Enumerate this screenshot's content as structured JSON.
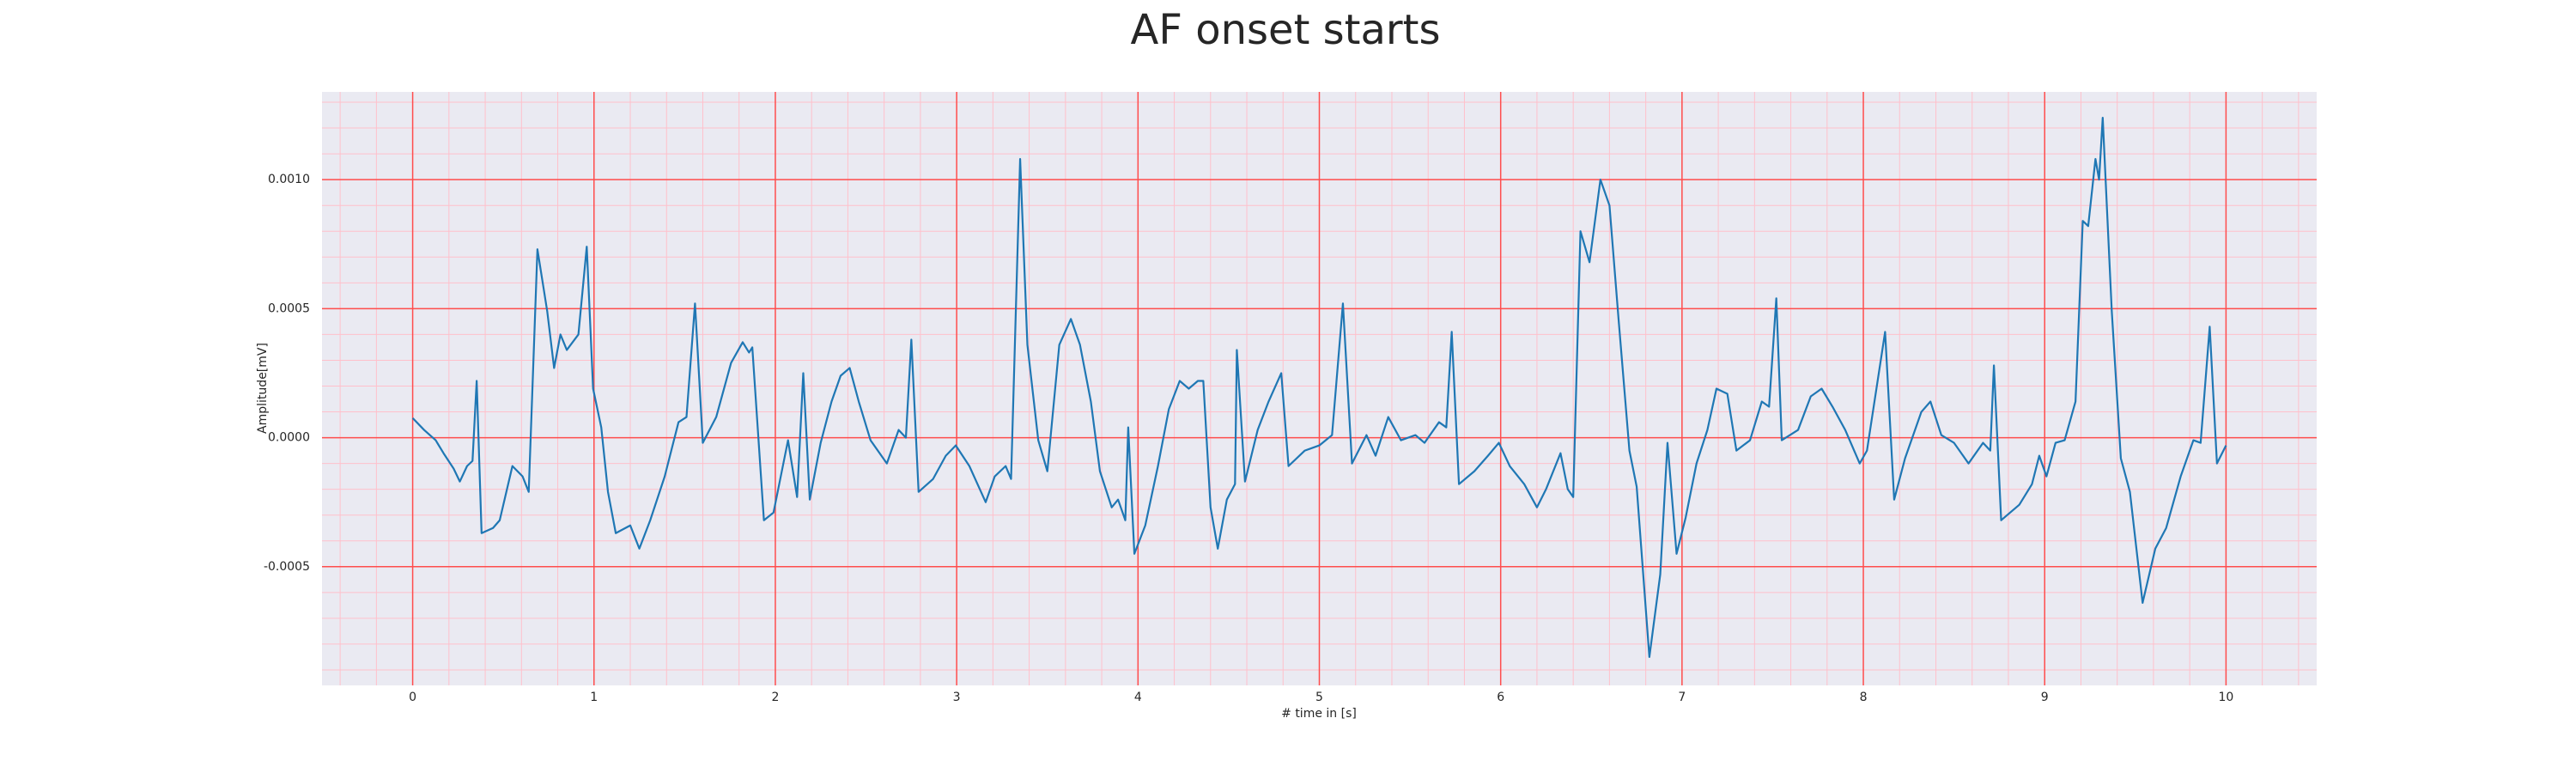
{
  "chart_data": {
    "type": "line",
    "title": "AF onset starts",
    "xlabel": "# time in [s]",
    "ylabel": "Amplitude[mV]",
    "xlim": [
      -0.5,
      10.5
    ],
    "ylim": [
      -0.00096,
      0.00134
    ],
    "xticks": [
      0,
      1,
      2,
      3,
      4,
      5,
      6,
      7,
      8,
      9,
      10
    ],
    "yticks": [
      {
        "value": -0.0005,
        "label": "-0.0005"
      },
      {
        "value": 0,
        "label": "0.0000"
      },
      {
        "value": 0.0005,
        "label": "0.0005"
      },
      {
        "value": 0.001,
        "label": "0.0010"
      }
    ],
    "grid": true,
    "minor_grid": {
      "x": 0.2,
      "y": 0.0001
    },
    "background": "#eaeaf2",
    "grid_color": "#ff4d4d",
    "minor_grid_color": "#ffc0cb",
    "series": [
      {
        "color": "#1f77b4",
        "x": [
          0,
          0.063,
          0.127,
          0.17,
          0.226,
          0.26,
          0.3,
          0.33,
          0.353,
          0.38,
          0.443,
          0.48,
          0.55,
          0.606,
          0.64,
          0.688,
          0.742,
          0.78,
          0.815,
          0.85,
          0.914,
          0.96,
          0.995,
          1.04,
          1.077,
          1.12,
          1.2,
          1.25,
          1.31,
          1.39,
          1.466,
          1.51,
          1.557,
          1.6,
          1.674,
          1.756,
          1.82,
          1.855,
          1.873,
          1.937,
          1.99,
          2.07,
          2.12,
          2.154,
          2.19,
          2.25,
          2.31,
          2.36,
          2.41,
          2.46,
          2.525,
          2.615,
          2.68,
          2.72,
          2.75,
          2.79,
          2.87,
          2.94,
          2.995,
          3.07,
          3.16,
          3.21,
          3.27,
          3.3,
          3.35,
          3.39,
          3.45,
          3.5,
          3.566,
          3.63,
          3.68,
          3.74,
          3.79,
          3.855,
          3.89,
          3.93,
          3.946,
          3.98,
          4.04,
          4.11,
          4.17,
          4.23,
          4.28,
          4.33,
          4.36,
          4.4,
          4.44,
          4.49,
          4.535,
          4.545,
          4.59,
          4.66,
          4.72,
          4.79,
          4.83,
          4.92,
          5.0,
          5.07,
          5.13,
          5.18,
          5.26,
          5.31,
          5.38,
          5.45,
          5.53,
          5.58,
          5.66,
          5.7,
          5.73,
          5.77,
          5.855,
          5.93,
          5.99,
          6.05,
          6.13,
          6.2,
          6.25,
          6.33,
          6.37,
          6.4,
          6.44,
          6.49,
          6.55,
          6.6,
          6.65,
          6.71,
          6.75,
          6.82,
          6.88,
          6.92,
          6.97,
          7.02,
          7.08,
          7.14,
          7.19,
          7.25,
          7.3,
          7.375,
          7.44,
          7.48,
          7.52,
          7.55,
          7.64,
          7.71,
          7.77,
          7.83,
          7.9,
          7.98,
          8.02,
          8.12,
          8.17,
          8.23,
          8.32,
          8.37,
          8.43,
          8.5,
          8.58,
          8.66,
          8.7,
          8.72,
          8.76,
          8.86,
          8.93,
          8.97,
          9.01,
          9.06,
          9.11,
          9.17,
          9.21,
          9.24,
          9.28,
          9.3,
          9.32,
          9.37,
          9.42,
          9.47,
          9.54,
          9.61,
          9.67,
          9.75,
          9.82,
          9.86,
          9.91,
          9.95,
          10.0
        ],
        "values": [
          7.6e-05,
          3e-05,
          -1e-05,
          -6e-05,
          -0.00012,
          -0.00017,
          -0.00011,
          -9e-05,
          0.00022,
          -0.00037,
          -0.00035,
          -0.00032,
          -0.00011,
          -0.00015,
          -0.00021,
          0.00073,
          0.00049,
          0.00027,
          0.0004,
          0.00034,
          0.0004,
          0.00074,
          0.00019,
          4e-05,
          -0.00021,
          -0.00037,
          -0.00034,
          -0.00043,
          -0.00032,
          -0.00015,
          6e-05,
          8e-05,
          0.00052,
          -2e-05,
          8e-05,
          0.00029,
          0.00037,
          0.00033,
          0.00035,
          -0.00032,
          -0.00029,
          -1e-05,
          -0.00023,
          0.00025,
          -0.00024,
          -2e-05,
          0.00014,
          0.00024,
          0.00027,
          0.00014,
          -1e-05,
          -0.0001,
          3e-05,
          0,
          0.00038,
          -0.00021,
          -0.00016,
          -7e-05,
          -3e-05,
          -0.00011,
          -0.00025,
          -0.00015,
          -0.00011,
          -0.00016,
          0.00108,
          0.00036,
          -1e-05,
          -0.00013,
          0.00036,
          0.00046,
          0.00036,
          0.00014,
          -0.00013,
          -0.00027,
          -0.00024,
          -0.00032,
          4e-05,
          -0.00045,
          -0.00034,
          -0.00011,
          0.00011,
          0.00022,
          0.00019,
          0.00022,
          0.00022,
          -0.00027,
          -0.00043,
          -0.00024,
          -0.00018,
          0.00034,
          -0.00017,
          3e-05,
          0.00014,
          0.00025,
          -0.00011,
          -5e-05,
          -3e-05,
          1e-05,
          0.00052,
          -0.0001,
          1e-05,
          -7e-05,
          8e-05,
          -1e-05,
          1e-05,
          -2e-05,
          6e-05,
          4e-05,
          0.00041,
          -0.00018,
          -0.00013,
          -7e-05,
          -2e-05,
          -0.00011,
          -0.00018,
          -0.00027,
          -0.0002,
          -6e-05,
          -0.0002,
          -0.00023,
          0.0008,
          0.00068,
          0.001,
          0.0009,
          0.00046,
          -5e-05,
          -0.00019,
          -0.00085,
          -0.00053,
          -2e-05,
          -0.00045,
          -0.00031,
          -0.0001,
          3e-05,
          0.00019,
          0.00017,
          -5e-05,
          -1e-05,
          0.00014,
          0.00012,
          0.00054,
          -1e-05,
          3e-05,
          0.00016,
          0.00019,
          0.00012,
          3e-05,
          -0.0001,
          -5e-05,
          0.00041,
          -0.00024,
          -8e-05,
          0.0001,
          0.00014,
          1e-05,
          -2e-05,
          -0.0001,
          -2e-05,
          -5e-05,
          0.00028,
          -0.00032,
          -0.00026,
          -0.00018,
          -7e-05,
          -0.00015,
          -2e-05,
          -1e-05,
          0.00014,
          0.00084,
          0.00082,
          0.00108,
          0.001,
          0.00124,
          0.00049,
          -8e-05,
          -0.00021,
          -0.00064,
          -0.00043,
          -0.00035,
          -0.00015,
          -1e-05,
          -2e-05,
          0.00043,
          -0.0001,
          -3e-05
        ]
      }
    ]
  }
}
